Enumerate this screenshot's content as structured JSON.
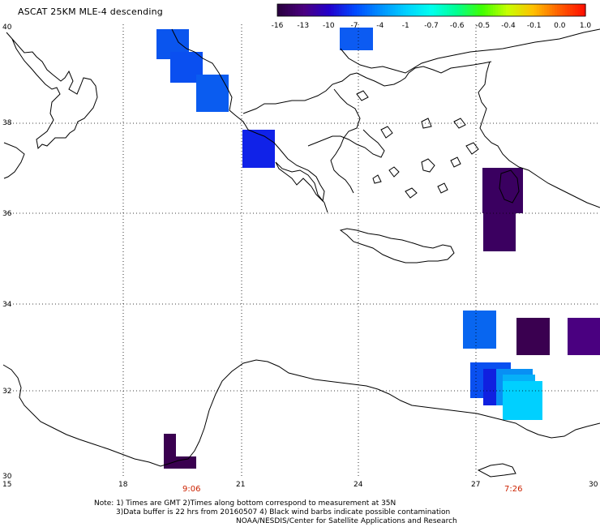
{
  "title": "ASCAT 25KM MLE-4 descending",
  "colorbar": {
    "labels": [
      "-16",
      "-13",
      "-10",
      "-7",
      "-4",
      "-1",
      "-0.7",
      "-0.6",
      "-0.5",
      "-0.4",
      "-0.1",
      "0.0",
      "1.0"
    ],
    "colors": [
      "#2a0040",
      "#4a0080",
      "#2200cc",
      "#0048ff",
      "#0090ff",
      "#00d0ff",
      "#00ffee",
      "#00ff90",
      "#40ff00",
      "#c8ff00",
      "#ffc000",
      "#ff6000",
      "#ff1000"
    ]
  },
  "axes": {
    "lon_ticks": [
      "15",
      "18",
      "21",
      "24",
      "27",
      "30"
    ],
    "lat_ticks": [
      "40",
      "38",
      "36",
      "34",
      "32",
      "30"
    ]
  },
  "time_labels": [
    "9:06",
    "7:26"
  ],
  "notes": {
    "line1": "Note: 1) Times are GMT 2)Times along bottom correspond to measurement at 35N",
    "line2": "3)Data buffer is 22 hrs from 20160507 4) Black wind barbs indicate possible contamination",
    "line3": "NOAA/NESDIS/Center for Satellite Applications and Research"
  }
}
